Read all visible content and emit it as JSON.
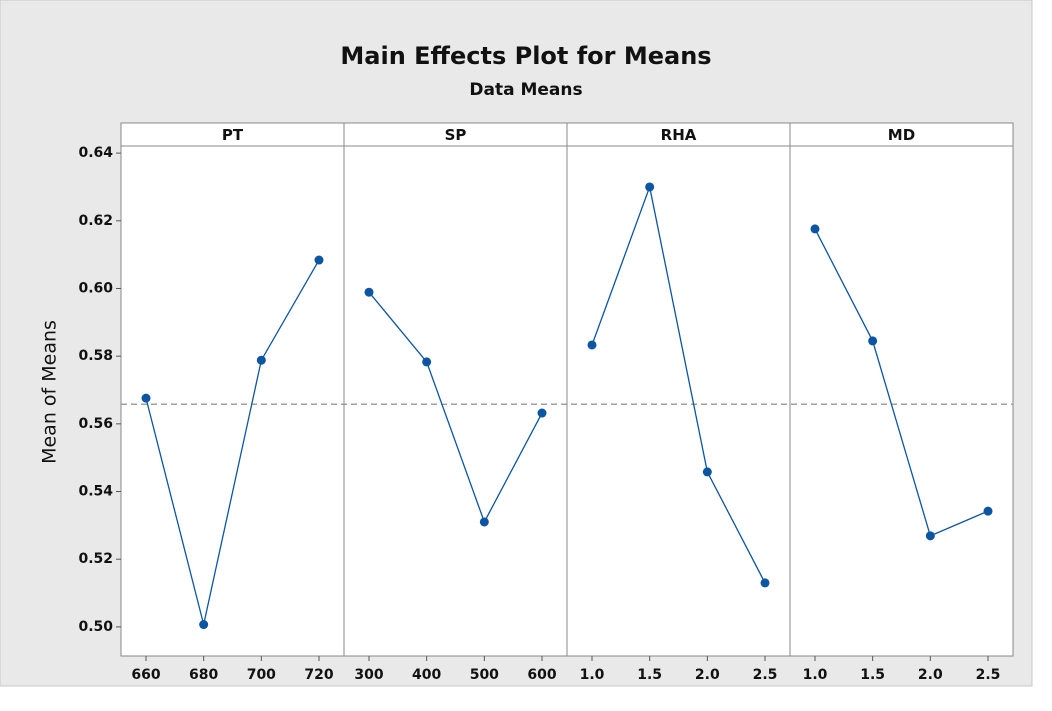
{
  "chart_data": {
    "type": "line",
    "title": "Main Effects Plot for Means",
    "subtitle": "Data Means",
    "ylabel": "Mean of Means",
    "color": "#0b55a3",
    "reference": 0.5658,
    "reference_color": "#a0a0a0",
    "ylim": [
      0.4914,
      0.6421
    ],
    "yticks": [
      {
        "value": 0.5,
        "label": "0.50"
      },
      {
        "value": 0.52,
        "label": "0.52"
      },
      {
        "value": 0.54,
        "label": "0.54"
      },
      {
        "value": 0.56,
        "label": "0.56"
      },
      {
        "value": 0.58,
        "label": "0.58"
      },
      {
        "value": 0.6,
        "label": "0.60"
      },
      {
        "value": 0.62,
        "label": "0.62"
      },
      {
        "value": 0.64,
        "label": "0.64"
      }
    ],
    "panels": [
      {
        "name": "PT",
        "categories": [
          "660",
          "680",
          "700",
          "720"
        ],
        "values": [
          0.5676,
          0.5007,
          0.5788,
          0.6084
        ]
      },
      {
        "name": "SP",
        "categories": [
          "300",
          "400",
          "500",
          "600"
        ],
        "values": [
          0.5989,
          0.5783,
          0.531,
          0.5632
        ]
      },
      {
        "name": "RHA",
        "categories": [
          "1.0",
          "1.5",
          "2.0",
          "2.5"
        ],
        "values": [
          0.5833,
          0.63,
          0.5458,
          0.513
        ]
      },
      {
        "name": "MD",
        "categories": [
          "1.0",
          "1.5",
          "2.0",
          "2.5"
        ],
        "values": [
          0.6176,
          0.5845,
          0.5269,
          0.5342
        ]
      }
    ]
  }
}
